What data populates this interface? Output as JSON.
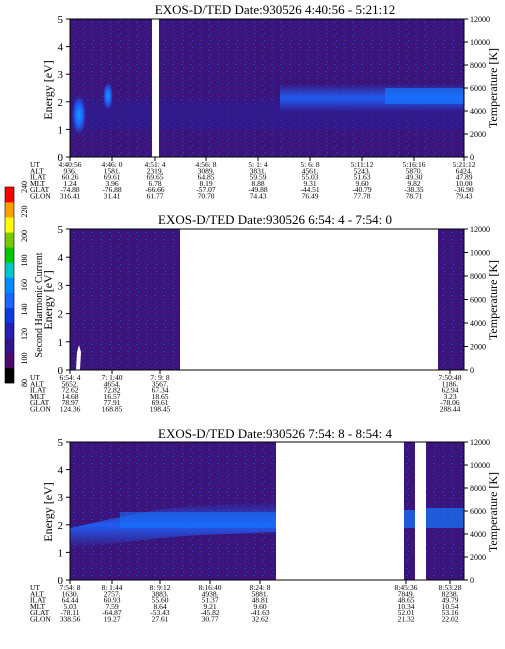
{
  "colors": {
    "background": "#330066",
    "spectrum": [
      "#000000",
      "#4b0a6e",
      "#32148c",
      "#281eb4",
      "#0a3cdc",
      "#1e64ff",
      "#008cff",
      "#00c8c8",
      "#00c800",
      "#78c800",
      "#ffff00",
      "#ffa000",
      "#ff0000"
    ]
  },
  "colorbar": {
    "label": "Second Harmonic Current",
    "ticks": [
      "80",
      "100",
      "120",
      "140",
      "160",
      "180",
      "200",
      "220",
      "240"
    ]
  },
  "chart_data": [
    {
      "type": "heatmap",
      "title": "EXOS-D/TED   Date:930526   4:40:56 - 5:21:12",
      "ylabel": "Energy [eV]",
      "ylabel_right": "Temperature [K]",
      "ylim": [
        0,
        5
      ],
      "ylim_right": [
        0,
        12000
      ],
      "yticks": [
        "0",
        "1",
        "2",
        "3",
        "4",
        "5"
      ],
      "yticks_right": [
        "0",
        "2000",
        "4000",
        "6000",
        "8000",
        "10000",
        "12000"
      ],
      "row_labels": [
        "UT",
        "ALT",
        "ILAT",
        "MLT",
        "GLAT",
        "GLON"
      ],
      "columns": [
        [
          "4:40:56",
          "936.",
          "60.26",
          "1.24",
          "-74.88",
          "316.41"
        ],
        [
          "4:46: 0",
          "1581.",
          "69.61",
          "3.96",
          "-76.88",
          "31.41"
        ],
        [
          "4:51: 4",
          "2319.",
          "69.65",
          "6.78",
          "-66.66",
          "61.77"
        ],
        [
          "4:56: 8",
          "3089.",
          "64.85",
          "8.19",
          "-57.07",
          "70.70"
        ],
        [
          "5: 1: 4",
          "3831.",
          "59.59",
          "8.88",
          "-49.88",
          "74.43"
        ],
        [
          "5: 6: 8",
          "4561.",
          "55.03",
          "9.31",
          "-44.51",
          "76.49"
        ],
        [
          "5:11:12",
          "5243.",
          "51.63",
          "9.60",
          "-40.79",
          "77.78"
        ],
        [
          "5:16:16",
          "5870.",
          "49.30",
          "9.82",
          "-38.35",
          "78.71"
        ],
        [
          "5:21:12",
          "6424.",
          "47.89",
          "10.00",
          "-36.90",
          "79.43"
        ]
      ]
    },
    {
      "type": "heatmap",
      "title": "EXOS-D/TED   Date:930526   6:54: 4 - 7:54: 0",
      "ylabel": "Energy [eV]",
      "ylabel_right": "Temperature [K]",
      "ylim": [
        0,
        5
      ],
      "ylim_right": [
        0,
        12000
      ],
      "yticks": [
        "0",
        "1",
        "2",
        "3",
        "4",
        "5"
      ],
      "yticks_right": [
        "0",
        "2000",
        "4000",
        "6000",
        "8000",
        "10000",
        "12000"
      ],
      "row_labels": [
        "UT",
        "ALT",
        "ILAT",
        "MLT",
        "GLAT",
        "GLON"
      ],
      "columns": [
        [
          "6:54: 4",
          "5652.",
          "72.62",
          "14.68",
          "78.97",
          "124.36"
        ],
        [
          "7: 1:40",
          "4654.",
          "72.82",
          "16.57",
          "77.91",
          "168.85"
        ],
        [
          "7: 9: 8",
          "3567.",
          "67.34",
          "18.65",
          "69.61",
          "198.45"
        ],
        [
          "7:50:48",
          "1186.",
          "62.94",
          "3.23",
          "-78.06",
          "288.44"
        ]
      ]
    },
    {
      "type": "heatmap",
      "title": "EXOS-D/TED   Date:930526   7:54: 8 - 8:54: 4",
      "ylabel": "Energy [eV]",
      "ylabel_right": "Temperature [K]",
      "ylim": [
        0,
        5
      ],
      "ylim_right": [
        0,
        12000
      ],
      "yticks": [
        "0",
        "1",
        "2",
        "3",
        "4",
        "5"
      ],
      "yticks_right": [
        "0",
        "2000",
        "4000",
        "6000",
        "8000",
        "10000",
        "12000"
      ],
      "row_labels": [
        "UT",
        "ALT",
        "ILAT",
        "MLT",
        "GLAT",
        "GLON"
      ],
      "columns": [
        [
          "7:54: 8",
          "1630.",
          "64.44",
          "5.03",
          "-78.11",
          "338.56"
        ],
        [
          "8: 1:44",
          "2757.",
          "60.93",
          "7.59",
          "-64.87",
          "19.27"
        ],
        [
          "8: 9:12",
          "3883.",
          "55.60",
          "8.64",
          "-53.43",
          "27.61"
        ],
        [
          "8:16:40",
          "4938.",
          "51.37",
          "9.21",
          "-45.82",
          "30.77"
        ],
        [
          "8:24: 8",
          "5881.",
          "48.81",
          "9.60",
          "-41.63",
          "32.62"
        ],
        [
          "8:45:36",
          "7849.",
          "48.65",
          "10.34",
          "52.01",
          "21.32"
        ],
        [
          "8:53:28",
          "8238.",
          "49.79",
          "10.54",
          "53.16",
          "22.02"
        ]
      ]
    }
  ]
}
